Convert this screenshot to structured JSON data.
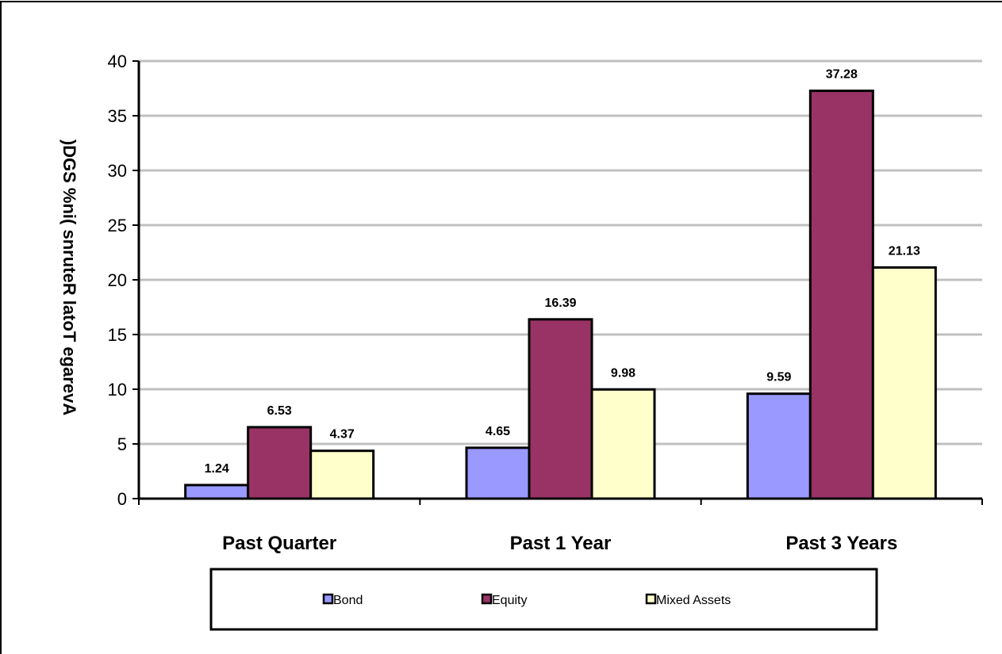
{
  "chart_data": {
    "type": "bar",
    "title": "",
    "xlabel": "",
    "ylabel": "Average Total Returns (% in SGD)",
    "ylabel_rendered": ")DGS %ni( snruteR latoT egarevA",
    "categories": [
      "Past Quarter",
      "Past 1 Year",
      "Past 3 Years"
    ],
    "series": [
      {
        "name": "Bond",
        "values": [
          1.24,
          4.65,
          9.59
        ],
        "labels": [
          "1.24",
          "4.65",
          "9.59"
        ],
        "color": "#9999ff"
      },
      {
        "name": "Equity",
        "values": [
          6.53,
          16.39,
          37.28
        ],
        "labels": [
          "6.53",
          "16.39",
          "37.28"
        ],
        "color": "#993366"
      },
      {
        "name": "Mixed Assets",
        "values": [
          4.37,
          9.98,
          21.13
        ],
        "labels": [
          "4.37",
          "9.98",
          "21.13"
        ],
        "color": "#ffffcc"
      }
    ],
    "ylim": [
      0,
      40
    ],
    "yticks": [
      "0",
      "5",
      "10",
      "15",
      "20",
      "25",
      "30",
      "35",
      "40"
    ],
    "grid": true,
    "legend_position": "bottom"
  }
}
